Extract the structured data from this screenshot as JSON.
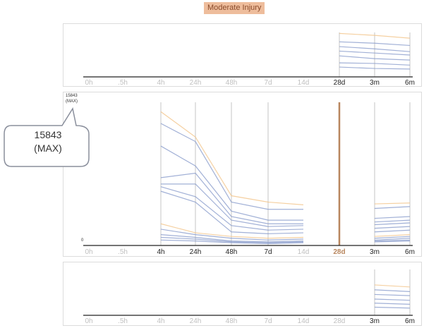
{
  "title": "Moderate Injury",
  "callout": {
    "line1": "15843",
    "line2": "(MAX)"
  },
  "y_axis": {
    "max_label": "15843\n(MAX)",
    "min_label": "0"
  },
  "colors": {
    "accent": "#b8865e",
    "title_bg": "#eebd9c",
    "series_blue": "#8a9ccc",
    "series_orange": "#f3c48a"
  },
  "chart_data": [
    {
      "type": "line",
      "panel": "top",
      "x": [
        "0h",
        ".5h",
        "4h",
        "24h",
        "48h",
        "7d",
        "14d",
        "28d",
        "3m",
        "6m"
      ],
      "active_x": [
        "28d",
        "3m",
        "6m"
      ],
      "highlight_x": null,
      "ylim": [
        0,
        15843
      ],
      "series": [
        {
          "color": "orange",
          "values": [
            null,
            null,
            null,
            null,
            null,
            null,
            null,
            15500,
            14800,
            13800
          ]
        },
        {
          "color": "blue",
          "values": [
            null,
            null,
            null,
            null,
            null,
            null,
            null,
            12500,
            12000,
            11200
          ]
        },
        {
          "color": "blue",
          "values": [
            null,
            null,
            null,
            null,
            null,
            null,
            null,
            10800,
            10000,
            9000
          ]
        },
        {
          "color": "blue",
          "values": [
            null,
            null,
            null,
            null,
            null,
            null,
            null,
            9200,
            8500,
            7800
          ]
        },
        {
          "color": "blue",
          "values": [
            null,
            null,
            null,
            null,
            null,
            null,
            null,
            7500,
            6500,
            6000
          ]
        },
        {
          "color": "blue",
          "values": [
            null,
            null,
            null,
            null,
            null,
            null,
            null,
            5000,
            4800,
            4200
          ]
        },
        {
          "color": "blue",
          "values": [
            null,
            null,
            null,
            null,
            null,
            null,
            null,
            3500,
            3000,
            2800
          ]
        }
      ]
    },
    {
      "type": "line",
      "panel": "middle",
      "x": [
        "0h",
        ".5h",
        "4h",
        "24h",
        "48h",
        "7d",
        "14d",
        "28d",
        "3m",
        "6m"
      ],
      "active_x": [
        "4h",
        "24h",
        "48h",
        "7d",
        "3m",
        "6m"
      ],
      "highlight_x": "28d",
      "ylim": [
        0,
        15843
      ],
      "series": [
        {
          "color": "orange",
          "values": [
            null,
            null,
            14800,
            12000,
            5500,
            4800,
            4500,
            null,
            4600,
            4700
          ]
        },
        {
          "color": "blue",
          "values": [
            null,
            null,
            13500,
            11500,
            4800,
            4000,
            4000,
            null,
            4100,
            4300
          ]
        },
        {
          "color": "blue",
          "values": [
            null,
            null,
            11000,
            8800,
            3800,
            2800,
            2800,
            null,
            3000,
            3200
          ]
        },
        {
          "color": "blue",
          "values": [
            null,
            null,
            7500,
            8000,
            3200,
            2400,
            2400,
            null,
            2600,
            2800
          ]
        },
        {
          "color": "blue",
          "values": [
            null,
            null,
            6800,
            6800,
            2800,
            2100,
            2200,
            null,
            2300,
            2500
          ]
        },
        {
          "color": "blue",
          "values": [
            null,
            null,
            6500,
            5400,
            2200,
            1700,
            1800,
            null,
            1900,
            2100
          ]
        },
        {
          "color": "blue",
          "values": [
            null,
            null,
            6000,
            4800,
            1500,
            1300,
            1400,
            null,
            1500,
            1700
          ]
        },
        {
          "color": "orange",
          "values": [
            null,
            null,
            2400,
            1400,
            1000,
            800,
            900,
            null,
            1000,
            1200
          ]
        },
        {
          "color": "blue",
          "values": [
            null,
            null,
            1800,
            1200,
            800,
            600,
            700,
            null,
            800,
            1000
          ]
        },
        {
          "color": "blue",
          "values": [
            null,
            null,
            1200,
            900,
            500,
            400,
            500,
            null,
            600,
            800
          ]
        },
        {
          "color": "blue",
          "values": [
            null,
            null,
            900,
            700,
            400,
            300,
            400,
            null,
            500,
            600
          ]
        },
        {
          "color": "blue",
          "values": [
            null,
            null,
            600,
            500,
            300,
            200,
            300,
            null,
            400,
            500
          ]
        }
      ]
    },
    {
      "type": "line",
      "panel": "bottom",
      "x": [
        "0h",
        ".5h",
        "4h",
        "24h",
        "48h",
        "7d",
        "14d",
        "28d",
        "3m",
        "6m"
      ],
      "active_x": [
        "3m",
        "6m"
      ],
      "highlight_x": null,
      "ylim": [
        0,
        15843
      ],
      "series": [
        {
          "color": "orange",
          "values": [
            null,
            null,
            null,
            null,
            null,
            null,
            null,
            null,
            10500,
            9800
          ]
        },
        {
          "color": "blue",
          "values": [
            null,
            null,
            null,
            null,
            null,
            null,
            null,
            null,
            8800,
            8200
          ]
        },
        {
          "color": "blue",
          "values": [
            null,
            null,
            null,
            null,
            null,
            null,
            null,
            null,
            7200,
            6800
          ]
        },
        {
          "color": "blue",
          "values": [
            null,
            null,
            null,
            null,
            null,
            null,
            null,
            null,
            5600,
            5200
          ]
        },
        {
          "color": "blue",
          "values": [
            null,
            null,
            null,
            null,
            null,
            null,
            null,
            null,
            4200,
            3800
          ]
        },
        {
          "color": "blue",
          "values": [
            null,
            null,
            null,
            null,
            null,
            null,
            null,
            null,
            2800,
            2500
          ]
        }
      ]
    }
  ]
}
